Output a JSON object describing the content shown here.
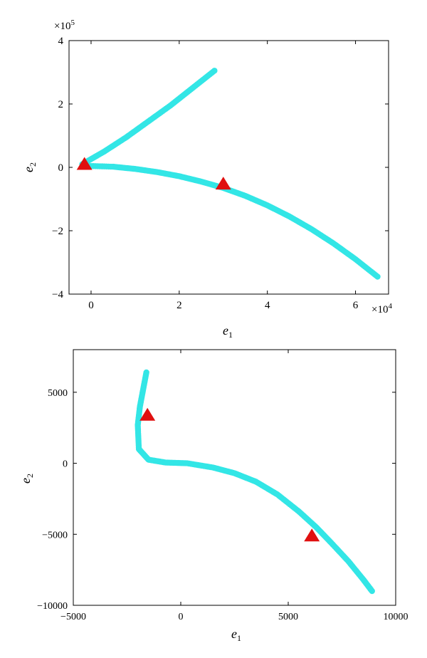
{
  "chart_data": [
    {
      "type": "scatter",
      "title": "",
      "xlabel": "e",
      "xlabel_sub": "1",
      "ylabel": "e",
      "ylabel_sub": "2",
      "x_multiplier": "×10",
      "x_multiplier_exp": "4",
      "y_multiplier": "×10",
      "y_multiplier_exp": "5",
      "xlim": [
        -0.5,
        6.75
      ],
      "ylim": [
        -4,
        4
      ],
      "x_ticks": [
        0,
        2,
        4,
        6
      ],
      "x_tick_labels": [
        "0",
        "2",
        "4",
        "6"
      ],
      "y_ticks": [
        -4,
        -2,
        0,
        2,
        4
      ],
      "y_tick_labels": [
        "−4",
        "−2",
        "0",
        "2",
        "4"
      ],
      "grid": false,
      "series": [
        {
          "color": "#33e6e6",
          "marker": "dot",
          "x": [
            -0.2,
            0.3,
            0.8,
            1.3,
            1.8,
            2.3,
            2.8
          ],
          "y": [
            0.1,
            0.5,
            0.95,
            1.45,
            1.95,
            2.5,
            3.05
          ]
        },
        {
          "color": "#33e6e6",
          "marker": "dot",
          "x": [
            -0.2,
            0.5,
            1.0,
            1.5,
            2.0,
            2.5,
            3.0,
            3.5,
            4.0,
            4.5,
            5.0,
            5.5,
            6.0,
            6.5
          ],
          "y": [
            0.05,
            0.02,
            -0.05,
            -0.15,
            -0.28,
            -0.45,
            -0.65,
            -0.9,
            -1.2,
            -1.55,
            -1.95,
            -2.4,
            -2.9,
            -3.45
          ]
        },
        {
          "color": "#e01010",
          "marker": "triangle",
          "x": [
            -0.15,
            3.0
          ],
          "y": [
            0.1,
            -0.52
          ]
        }
      ]
    },
    {
      "type": "scatter",
      "title": "",
      "xlabel": "e",
      "xlabel_sub": "1",
      "ylabel": "e",
      "ylabel_sub": "2",
      "xlim": [
        -5000,
        10000
      ],
      "ylim": [
        -10000,
        8000
      ],
      "x_ticks": [
        -5000,
        0,
        5000,
        10000
      ],
      "x_tick_labels": [
        "−5000",
        "0",
        "5000",
        "10000"
      ],
      "y_ticks": [
        -10000,
        -5000,
        0,
        5000
      ],
      "y_tick_labels": [
        "−10000",
        "−5000",
        "0",
        "5000"
      ],
      "grid": false,
      "series": [
        {
          "color": "#33e6e6",
          "marker": "dot",
          "x": [
            -1600,
            -1750,
            -1900,
            -2000,
            -1950,
            -1500,
            -700,
            300,
            1500,
            2500,
            3500,
            4500,
            5500,
            6300,
            7000,
            7800,
            8500,
            8900
          ],
          "y": [
            6400,
            5200,
            4000,
            2700,
            1000,
            250,
            50,
            0,
            -300,
            -700,
            -1300,
            -2200,
            -3400,
            -4500,
            -5600,
            -6900,
            -8200,
            -9000
          ]
        },
        {
          "color": "#e01010",
          "marker": "triangle",
          "x": [
            -1550,
            6100
          ],
          "y": [
            3400,
            -5100
          ]
        }
      ]
    }
  ]
}
